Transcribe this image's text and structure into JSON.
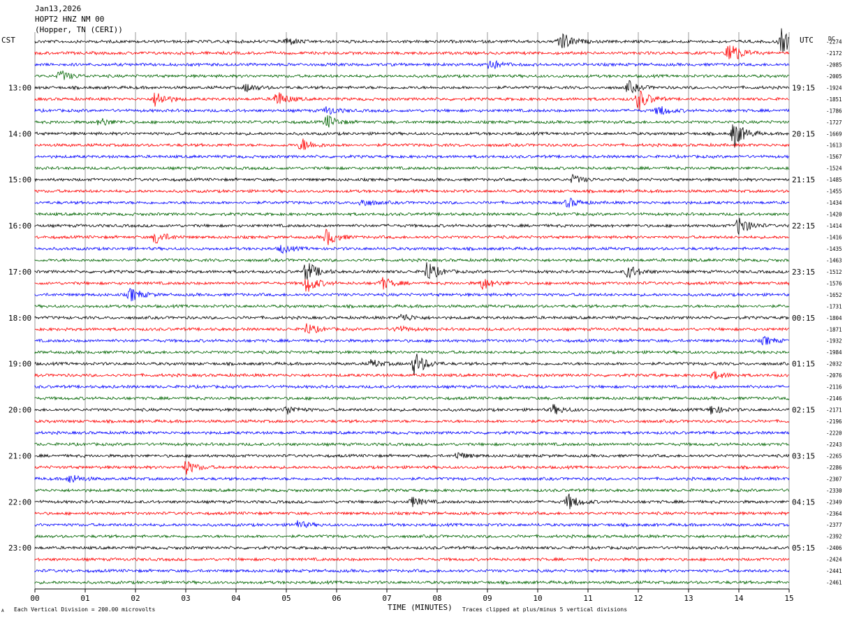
{
  "header": {
    "date": "Jan13,2026",
    "station": "HOPT2 HNZ NM 00",
    "location": "(Hopper, TN (CERI))"
  },
  "left_tz": "CST",
  "right_tz": "UTC",
  "dc_label": "DC",
  "footer": {
    "left_mark": "A",
    "scale_note": "Each Vertical Division =  200.00 microvolts",
    "xaxis_title": "TIME (MINUTES)",
    "clip_note": "Traces clipped at plus/minus 5 vertical divisions"
  },
  "colors": {
    "trace_cycle": [
      "#000000",
      "#ff0000",
      "#0000ff",
      "#006400"
    ],
    "grid": "#808080"
  },
  "chart_data": {
    "type": "line",
    "subtype": "helicorder",
    "title": "HOPT2 HNZ NM 00",
    "xlabel": "TIME (MINUTES)",
    "xlim": [
      0,
      15
    ],
    "x_ticks": [
      "00",
      "01",
      "02",
      "03",
      "04",
      "05",
      "06",
      "07",
      "08",
      "09",
      "10",
      "11",
      "12",
      "13",
      "14",
      "15"
    ],
    "minutes_per_line": 15,
    "left_hour_labels": [
      "13:00",
      "14:00",
      "15:00",
      "16:00",
      "17:00",
      "18:00",
      "19:00",
      "20:00",
      "21:00",
      "22:00",
      "23:00"
    ],
    "right_hour_labels": [
      "19:15",
      "20:15",
      "21:15",
      "22:15",
      "23:15",
      "00:15",
      "01:15",
      "02:15",
      "03:15",
      "04:15",
      "05:15"
    ],
    "dc_offsets": [
      -2274,
      -2172,
      -2085,
      -2005,
      -1924,
      -1851,
      -1786,
      -1727,
      -1669,
      -1613,
      -1567,
      -1524,
      -1485,
      -1455,
      -1434,
      -1420,
      -1414,
      -1416,
      -1435,
      -1463,
      -1512,
      -1576,
      -1652,
      -1731,
      -1804,
      -1871,
      -1932,
      -1984,
      -2032,
      -2076,
      -2116,
      -2146,
      -2171,
      -2196,
      -2220,
      -2243,
      -2265,
      -2286,
      -2307,
      -2330,
      -2349,
      -2364,
      -2377,
      -2392,
      -2406,
      -2424,
      -2441,
      -2461
    ],
    "events": [
      {
        "line": 0,
        "minute": 5.0,
        "amp": 6
      },
      {
        "line": 0,
        "minute": 10.45,
        "amp": 16
      },
      {
        "line": 0,
        "minute": 14.85,
        "amp": 18
      },
      {
        "line": 1,
        "minute": 13.8,
        "amp": 20
      },
      {
        "line": 2,
        "minute": 9.0,
        "amp": 10
      },
      {
        "line": 3,
        "minute": 0.5,
        "amp": 8
      },
      {
        "line": 4,
        "minute": 4.2,
        "amp": 6
      },
      {
        "line": 4,
        "minute": 11.8,
        "amp": 9
      },
      {
        "line": 5,
        "minute": 2.4,
        "amp": 12
      },
      {
        "line": 5,
        "minute": 4.8,
        "amp": 12
      },
      {
        "line": 5,
        "minute": 12.0,
        "amp": 16
      },
      {
        "line": 6,
        "minute": 5.8,
        "amp": 6
      },
      {
        "line": 6,
        "minute": 12.4,
        "amp": 8
      },
      {
        "line": 7,
        "minute": 1.3,
        "amp": 6
      },
      {
        "line": 7,
        "minute": 5.8,
        "amp": 10
      },
      {
        "line": 8,
        "minute": 13.9,
        "amp": 20
      },
      {
        "line": 9,
        "minute": 5.3,
        "amp": 10
      },
      {
        "line": 12,
        "minute": 10.7,
        "amp": 6
      },
      {
        "line": 14,
        "minute": 6.5,
        "amp": 6
      },
      {
        "line": 14,
        "minute": 10.6,
        "amp": 7
      },
      {
        "line": 16,
        "minute": 14.0,
        "amp": 14
      },
      {
        "line": 17,
        "minute": 2.4,
        "amp": 10
      },
      {
        "line": 17,
        "minute": 5.8,
        "amp": 12
      },
      {
        "line": 18,
        "minute": 4.9,
        "amp": 6
      },
      {
        "line": 20,
        "minute": 5.4,
        "amp": 16
      },
      {
        "line": 20,
        "minute": 7.8,
        "amp": 15
      },
      {
        "line": 20,
        "minute": 11.8,
        "amp": 10
      },
      {
        "line": 21,
        "minute": 5.4,
        "amp": 14
      },
      {
        "line": 21,
        "minute": 6.9,
        "amp": 9
      },
      {
        "line": 21,
        "minute": 8.9,
        "amp": 9
      },
      {
        "line": 22,
        "minute": 1.9,
        "amp": 10
      },
      {
        "line": 24,
        "minute": 7.3,
        "amp": 6
      },
      {
        "line": 25,
        "minute": 5.4,
        "amp": 8
      },
      {
        "line": 25,
        "minute": 7.2,
        "amp": 5
      },
      {
        "line": 26,
        "minute": 14.5,
        "amp": 6
      },
      {
        "line": 28,
        "minute": 7.55,
        "amp": 18
      },
      {
        "line": 28,
        "minute": 6.7,
        "amp": 6
      },
      {
        "line": 29,
        "minute": 13.5,
        "amp": 6
      },
      {
        "line": 32,
        "minute": 5.0,
        "amp": 7
      },
      {
        "line": 32,
        "minute": 10.3,
        "amp": 7
      },
      {
        "line": 32,
        "minute": 13.45,
        "amp": 7
      },
      {
        "line": 36,
        "minute": 8.4,
        "amp": 5
      },
      {
        "line": 37,
        "minute": 3.0,
        "amp": 10
      },
      {
        "line": 38,
        "minute": 0.7,
        "amp": 7
      },
      {
        "line": 40,
        "minute": 7.5,
        "amp": 7
      },
      {
        "line": 40,
        "minute": 10.6,
        "amp": 12
      },
      {
        "line": 42,
        "minute": 5.2,
        "amp": 6
      }
    ]
  }
}
